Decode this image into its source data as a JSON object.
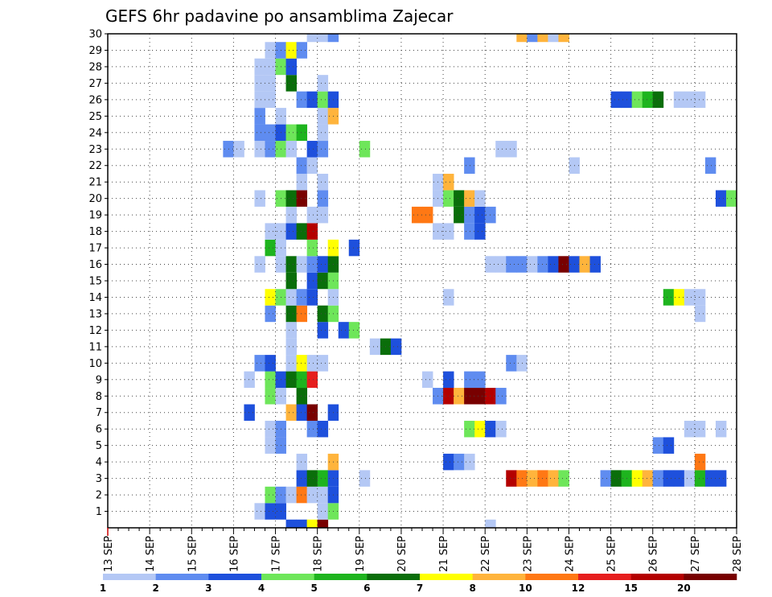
{
  "chart_data": {
    "type": "heatmap",
    "title": "GEFS 6hr padavine po ansamblima Zajecar",
    "x_labels": [
      "13 SEP",
      "14 SEP",
      "15 SEP",
      "16 SEP",
      "17 SEP",
      "18 SEP",
      "19 SEP",
      "20 SEP",
      "21 SEP",
      "22 SEP",
      "23 SEP",
      "24 SEP",
      "25 SEP",
      "26 SEP",
      "27 SEP",
      "28 SEP"
    ],
    "x_range": [
      "13 SEP 00Z",
      "28 SEP 00Z"
    ],
    "step_hours": 6,
    "y_labels": [
      "1",
      "2",
      "3",
      "4",
      "5",
      "6",
      "7",
      "8",
      "9",
      "10",
      "11",
      "12",
      "13",
      "14",
      "15",
      "16",
      "17",
      "18",
      "19",
      "20",
      "21",
      "22",
      "23",
      "24",
      "25",
      "26",
      "27",
      "28",
      "29",
      "30"
    ],
    "ylim": [
      0,
      30
    ],
    "grid": true,
    "colorbar": {
      "levels": [
        "1",
        "2",
        "3",
        "4",
        "5",
        "6",
        "7",
        "8",
        "10",
        "12",
        "15",
        "20"
      ],
      "colors": [
        "#b4c8f5",
        "#5f8cf0",
        "#1e50dc",
        "#6ee65a",
        "#1eb41e",
        "#0a6e0a",
        "#ffff00",
        "#ffb43c",
        "#ff7814",
        "#e61e1e",
        "#b40000",
        "#780000"
      ]
    },
    "cell_class_colors": [
      "#ffffff",
      "#b4c8f5",
      "#5f8cf0",
      "#1e50dc",
      "#6ee65a",
      "#1eb41e",
      "#0a6e0a",
      "#ffff00",
      "#ffb43c",
      "#ff7814",
      "#e61e1e",
      "#b40000",
      "#780000"
    ],
    "cells": [
      [
        0,
        17,
        3
      ],
      [
        0,
        18,
        3
      ],
      [
        0,
        19,
        7
      ],
      [
        0,
        20,
        12
      ],
      [
        0,
        36,
        1
      ],
      [
        1,
        14,
        1
      ],
      [
        1,
        15,
        3
      ],
      [
        1,
        16,
        3
      ],
      [
        1,
        20,
        1
      ],
      [
        1,
        21,
        4
      ],
      [
        2,
        15,
        4
      ],
      [
        2,
        16,
        2
      ],
      [
        2,
        17,
        1
      ],
      [
        2,
        18,
        9
      ],
      [
        2,
        19,
        1
      ],
      [
        2,
        20,
        1
      ],
      [
        2,
        21,
        3
      ],
      [
        3,
        18,
        3
      ],
      [
        3,
        19,
        6
      ],
      [
        3,
        20,
        5
      ],
      [
        3,
        21,
        3
      ],
      [
        3,
        24,
        1
      ],
      [
        3,
        38,
        11
      ],
      [
        3,
        39,
        9
      ],
      [
        3,
        40,
        8
      ],
      [
        3,
        41,
        9
      ],
      [
        3,
        42,
        8
      ],
      [
        3,
        43,
        4
      ],
      [
        3,
        47,
        2
      ],
      [
        3,
        48,
        6
      ],
      [
        3,
        49,
        5
      ],
      [
        3,
        50,
        7
      ],
      [
        3,
        51,
        8
      ],
      [
        3,
        52,
        2
      ],
      [
        3,
        53,
        3
      ],
      [
        3,
        54,
        3
      ],
      [
        3,
        55,
        1
      ],
      [
        3,
        56,
        5
      ],
      [
        3,
        57,
        3
      ],
      [
        3,
        58,
        3
      ],
      [
        4,
        18,
        1
      ],
      [
        4,
        21,
        8
      ],
      [
        4,
        32,
        3
      ],
      [
        4,
        33,
        2
      ],
      [
        4,
        34,
        1
      ],
      [
        4,
        56,
        9
      ],
      [
        5,
        15,
        1
      ],
      [
        5,
        16,
        2
      ],
      [
        5,
        52,
        2
      ],
      [
        5,
        53,
        3
      ],
      [
        6,
        15,
        1
      ],
      [
        6,
        16,
        2
      ],
      [
        6,
        19,
        2
      ],
      [
        6,
        20,
        3
      ],
      [
        6,
        34,
        4
      ],
      [
        6,
        35,
        7
      ],
      [
        6,
        36,
        3
      ],
      [
        6,
        37,
        1
      ],
      [
        6,
        55,
        1
      ],
      [
        6,
        56,
        1
      ],
      [
        6,
        58,
        1
      ],
      [
        7,
        13,
        3
      ],
      [
        7,
        17,
        8
      ],
      [
        7,
        18,
        3
      ],
      [
        7,
        19,
        12
      ],
      [
        7,
        21,
        3
      ],
      [
        8,
        15,
        4
      ],
      [
        8,
        16,
        1
      ],
      [
        8,
        18,
        6
      ],
      [
        8,
        31,
        2
      ],
      [
        8,
        32,
        11
      ],
      [
        8,
        33,
        8
      ],
      [
        8,
        34,
        12
      ],
      [
        8,
        35,
        12
      ],
      [
        8,
        36,
        11
      ],
      [
        8,
        37,
        2
      ],
      [
        9,
        13,
        1
      ],
      [
        9,
        15,
        4
      ],
      [
        9,
        16,
        3
      ],
      [
        9,
        17,
        6
      ],
      [
        9,
        18,
        5
      ],
      [
        9,
        19,
        10
      ],
      [
        9,
        30,
        1
      ],
      [
        9,
        32,
        3
      ],
      [
        9,
        34,
        2
      ],
      [
        9,
        35,
        2
      ],
      [
        10,
        14,
        2
      ],
      [
        10,
        15,
        3
      ],
      [
        10,
        17,
        1
      ],
      [
        10,
        18,
        7
      ],
      [
        10,
        19,
        1
      ],
      [
        10,
        20,
        1
      ],
      [
        10,
        38,
        2
      ],
      [
        10,
        39,
        1
      ],
      [
        11,
        17,
        1
      ],
      [
        11,
        25,
        1
      ],
      [
        11,
        26,
        6
      ],
      [
        11,
        27,
        3
      ],
      [
        12,
        17,
        1
      ],
      [
        12,
        20,
        3
      ],
      [
        12,
        22,
        3
      ],
      [
        12,
        23,
        4
      ],
      [
        13,
        15,
        2
      ],
      [
        13,
        17,
        6
      ],
      [
        13,
        18,
        9
      ],
      [
        13,
        20,
        6
      ],
      [
        13,
        21,
        4
      ],
      [
        13,
        56,
        1
      ],
      [
        14,
        15,
        7
      ],
      [
        14,
        16,
        4
      ],
      [
        14,
        17,
        1
      ],
      [
        14,
        18,
        2
      ],
      [
        14,
        19,
        3
      ],
      [
        14,
        21,
        1
      ],
      [
        14,
        32,
        1
      ],
      [
        14,
        53,
        5
      ],
      [
        14,
        54,
        7
      ],
      [
        14,
        55,
        1
      ],
      [
        14,
        56,
        1
      ],
      [
        15,
        17,
        6
      ],
      [
        15,
        19,
        3
      ],
      [
        15,
        20,
        6
      ],
      [
        15,
        21,
        4
      ],
      [
        16,
        14,
        1
      ],
      [
        16,
        16,
        1
      ],
      [
        16,
        17,
        6
      ],
      [
        16,
        18,
        1
      ],
      [
        16,
        19,
        2
      ],
      [
        16,
        20,
        3
      ],
      [
        16,
        21,
        6
      ],
      [
        16,
        36,
        1
      ],
      [
        16,
        37,
        1
      ],
      [
        16,
        38,
        2
      ],
      [
        16,
        39,
        2
      ],
      [
        16,
        40,
        1
      ],
      [
        16,
        41,
        2
      ],
      [
        16,
        42,
        3
      ],
      [
        16,
        43,
        12
      ],
      [
        16,
        44,
        3
      ],
      [
        16,
        45,
        8
      ],
      [
        16,
        46,
        3
      ],
      [
        17,
        15,
        5
      ],
      [
        17,
        16,
        1
      ],
      [
        17,
        19,
        4
      ],
      [
        17,
        21,
        7
      ],
      [
        17,
        23,
        3
      ],
      [
        18,
        15,
        1
      ],
      [
        18,
        16,
        1
      ],
      [
        18,
        17,
        3
      ],
      [
        18,
        18,
        6
      ],
      [
        18,
        19,
        11
      ],
      [
        18,
        31,
        1
      ],
      [
        18,
        32,
        1
      ],
      [
        18,
        34,
        2
      ],
      [
        18,
        35,
        3
      ],
      [
        19,
        17,
        1
      ],
      [
        19,
        19,
        1
      ],
      [
        19,
        20,
        1
      ],
      [
        19,
        29,
        9
      ],
      [
        19,
        30,
        9
      ],
      [
        19,
        33,
        6
      ],
      [
        19,
        34,
        2
      ],
      [
        19,
        35,
        3
      ],
      [
        19,
        36,
        2
      ],
      [
        20,
        14,
        1
      ],
      [
        20,
        16,
        4
      ],
      [
        20,
        17,
        6
      ],
      [
        20,
        18,
        12
      ],
      [
        20,
        20,
        2
      ],
      [
        20,
        31,
        1
      ],
      [
        20,
        32,
        4
      ],
      [
        20,
        33,
        6
      ],
      [
        20,
        34,
        8
      ],
      [
        20,
        35,
        1
      ],
      [
        20,
        58,
        3
      ],
      [
        20,
        59,
        4
      ],
      [
        21,
        18,
        1
      ],
      [
        21,
        20,
        1
      ],
      [
        21,
        31,
        1
      ],
      [
        21,
        32,
        8
      ],
      [
        22,
        18,
        2
      ],
      [
        22,
        19,
        1
      ],
      [
        22,
        34,
        2
      ],
      [
        22,
        44,
        1
      ],
      [
        22,
        57,
        2
      ],
      [
        23,
        11,
        2
      ],
      [
        23,
        12,
        1
      ],
      [
        23,
        14,
        1
      ],
      [
        23,
        15,
        2
      ],
      [
        23,
        16,
        4
      ],
      [
        23,
        17,
        1
      ],
      [
        23,
        19,
        3
      ],
      [
        23,
        20,
        2
      ],
      [
        23,
        24,
        4
      ],
      [
        23,
        37,
        1
      ],
      [
        23,
        38,
        1
      ],
      [
        24,
        14,
        2
      ],
      [
        24,
        15,
        2
      ],
      [
        24,
        16,
        3
      ],
      [
        24,
        17,
        4
      ],
      [
        24,
        18,
        5
      ],
      [
        24,
        20,
        1
      ],
      [
        25,
        14,
        2
      ],
      [
        25,
        16,
        1
      ],
      [
        25,
        20,
        1
      ],
      [
        25,
        21,
        8
      ],
      [
        26,
        14,
        1
      ],
      [
        26,
        15,
        1
      ],
      [
        26,
        18,
        2
      ],
      [
        26,
        19,
        3
      ],
      [
        26,
        20,
        4
      ],
      [
        26,
        21,
        3
      ],
      [
        26,
        48,
        3
      ],
      [
        26,
        49,
        3
      ],
      [
        26,
        50,
        4
      ],
      [
        26,
        51,
        5
      ],
      [
        26,
        52,
        6
      ],
      [
        26,
        54,
        1
      ],
      [
        26,
        55,
        1
      ],
      [
        26,
        56,
        1
      ],
      [
        27,
        14,
        1
      ],
      [
        27,
        15,
        1
      ],
      [
        27,
        17,
        6
      ],
      [
        27,
        20,
        1
      ],
      [
        28,
        14,
        1
      ],
      [
        28,
        15,
        1
      ],
      [
        28,
        16,
        4
      ],
      [
        28,
        17,
        3
      ],
      [
        29,
        15,
        1
      ],
      [
        29,
        16,
        2
      ],
      [
        29,
        17,
        7
      ],
      [
        29,
        18,
        2
      ],
      [
        30,
        19,
        1
      ],
      [
        30,
        20,
        1
      ],
      [
        30,
        21,
        2
      ],
      [
        30,
        39,
        8
      ],
      [
        30,
        40,
        2
      ],
      [
        30,
        41,
        8
      ],
      [
        30,
        42,
        1
      ],
      [
        30,
        43,
        8
      ]
    ]
  }
}
